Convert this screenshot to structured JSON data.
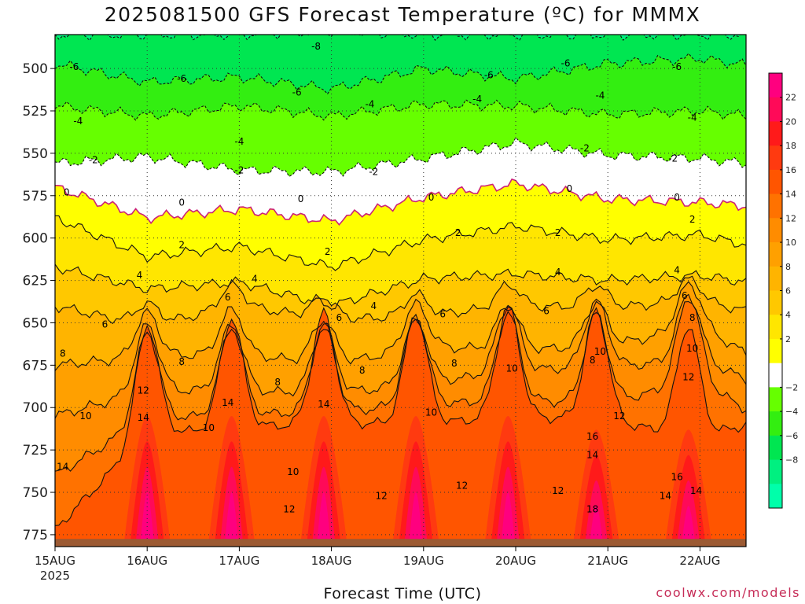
{
  "title": "2025081500 GFS Forecast Temperature (ºC) for MMMX",
  "xlabel": "Forecast Time (UTC)",
  "credit": "coolwx.com/models",
  "colors": {
    "ground": "#9c5a33",
    "freezing_line": "#cc2277",
    "contour": "#111111",
    "dashed_contour": "#111111"
  },
  "chart_data": {
    "type": "heatmap",
    "title": "2025081500 GFS Forecast Temperature (ºC) for MMMX",
    "xlabel": "Forecast Time (UTC)",
    "ylabel": "",
    "x_axis": {
      "start_hour": 0,
      "end_hour": 180,
      "ticks": [
        {
          "hour": 0,
          "label": "15AUG",
          "sublabel": "2025"
        },
        {
          "hour": 24,
          "label": "16AUG"
        },
        {
          "hour": 48,
          "label": "17AUG"
        },
        {
          "hour": 72,
          "label": "18AUG"
        },
        {
          "hour": 96,
          "label": "19AUG"
        },
        {
          "hour": 120,
          "label": "20AUG"
        },
        {
          "hour": 144,
          "label": "21AUG"
        },
        {
          "hour": 168,
          "label": "22AUG"
        }
      ]
    },
    "y_axis": {
      "top_hpa": 480,
      "bottom_hpa": 782,
      "ticks": [
        500,
        525,
        550,
        575,
        600,
        625,
        650,
        675,
        700,
        725,
        750,
        775
      ]
    },
    "grid": true,
    "legend_position": "right",
    "colorbar": {
      "label_values": [
        22,
        20,
        18,
        16,
        14,
        12,
        10,
        8,
        6,
        4,
        2,
        -2,
        -4,
        -6,
        -8
      ],
      "levels_top_down": [
        {
          "max": 24,
          "color": "#ff007f"
        },
        {
          "max": 22,
          "color": "#ff0a58"
        },
        {
          "max": 20,
          "color": "#ff1a1a"
        },
        {
          "max": 18,
          "color": "#ff3a10"
        },
        {
          "max": 16,
          "color": "#ff5500"
        },
        {
          "max": 14,
          "color": "#ff7200"
        },
        {
          "max": 12,
          "color": "#ff8c00"
        },
        {
          "max": 10,
          "color": "#ffa000"
        },
        {
          "max": 8,
          "color": "#ffb400"
        },
        {
          "max": 6,
          "color": "#ffc800"
        },
        {
          "max": 4,
          "color": "#ffe600"
        },
        {
          "max": 2,
          "color": "#ffff00"
        },
        {
          "max": 0,
          "color": "#ffffff"
        },
        {
          "max": -2,
          "color": "#66ff00"
        },
        {
          "max": -4,
          "color": "#33ee11"
        },
        {
          "max": -6,
          "color": "#00e651"
        },
        {
          "max": -8,
          "color": "#00f080"
        },
        {
          "max": -10,
          "color": "#00ffaa"
        }
      ]
    },
    "series": [
      {
        "name": "-8",
        "hours": [
          0,
          24,
          48,
          72,
          96,
          120,
          144,
          168,
          180
        ],
        "pressure": [
          480,
          480,
          480,
          478,
          480,
          480,
          480,
          480,
          480
        ]
      },
      {
        "name": "-6",
        "hours": [
          0,
          24,
          48,
          72,
          96,
          120,
          144,
          168,
          180
        ],
        "pressure": [
          497,
          508,
          505,
          512,
          500,
          506,
          497,
          494,
          498
        ]
      },
      {
        "name": "-4",
        "hours": [
          0,
          24,
          48,
          72,
          96,
          120,
          144,
          168,
          180
        ],
        "pressure": [
          522,
          528,
          522,
          528,
          521,
          522,
          527,
          525,
          528
        ]
      },
      {
        "name": "-2",
        "hours": [
          0,
          24,
          48,
          72,
          96,
          120,
          144,
          168,
          180
        ],
        "pressure": [
          556,
          552,
          560,
          561,
          553,
          544,
          551,
          553,
          556
        ]
      },
      {
        "name": "0",
        "hours": [
          0,
          24,
          48,
          72,
          96,
          120,
          144,
          168,
          180
        ],
        "pressure": [
          570,
          588,
          583,
          590,
          576,
          568,
          577,
          579,
          581
        ]
      },
      {
        "name": "2",
        "hours": [
          0,
          24,
          48,
          72,
          96,
          120,
          144,
          168,
          180
        ],
        "pressure": [
          588,
          611,
          605,
          617,
          601,
          593,
          601,
          598,
          604
        ]
      },
      {
        "name": "4",
        "hours": [
          0,
          24,
          48,
          72,
          96,
          120,
          144,
          168,
          180
        ],
        "pressure": [
          617,
          630,
          626,
          640,
          624,
          621,
          625,
          622,
          626
        ]
      },
      {
        "name": "6",
        "hours": [
          0,
          24,
          48,
          72,
          96,
          120,
          144,
          168,
          180
        ],
        "pressure": [
          640,
          652,
          640,
          648,
          646,
          640,
          641,
          637,
          643
        ]
      },
      {
        "name": "8",
        "hours": [
          0,
          24,
          48,
          72,
          96,
          120,
          144,
          168,
          180
        ],
        "pressure": [
          675,
          670,
          668,
          675,
          664,
          666,
          664,
          652,
          668
        ]
      },
      {
        "name": "10",
        "hours": [
          0,
          24,
          48,
          72,
          96,
          120,
          144,
          168,
          180
        ],
        "pressure": [
          705,
          690,
          690,
          692,
          686,
          678,
          676,
          672,
          683
        ]
      },
      {
        "name": "12",
        "hours": [
          0,
          24,
          48,
          72,
          96,
          120,
          144,
          168,
          180
        ],
        "pressure": [
          740,
          707,
          704,
          703,
          698,
          696,
          697,
          685,
          701
        ]
      },
      {
        "name": "14",
        "hours": [
          0,
          24,
          48,
          72,
          96,
          120,
          144,
          168,
          180
        ],
        "pressure": [
          772,
          716,
          712,
          709,
          710,
          705,
          708,
          718,
          710
        ]
      }
    ],
    "contour_labels": [
      {
        "text": "-8",
        "hour": 68,
        "p": 487
      },
      {
        "text": "-6",
        "hour": 5,
        "p": 499
      },
      {
        "text": "-6",
        "hour": 33,
        "p": 506
      },
      {
        "text": "-6",
        "hour": 63,
        "p": 514
      },
      {
        "text": "-6",
        "hour": 113,
        "p": 504
      },
      {
        "text": "-6",
        "hour": 133,
        "p": 497
      },
      {
        "text": "-6",
        "hour": 162,
        "p": 499
      },
      {
        "text": "-4",
        "hour": 6,
        "p": 531
      },
      {
        "text": "-4",
        "hour": 48,
        "p": 543
      },
      {
        "text": "-4",
        "hour": 82,
        "p": 521
      },
      {
        "text": "-4",
        "hour": 110,
        "p": 518
      },
      {
        "text": "-4",
        "hour": 142,
        "p": 516
      },
      {
        "text": "-4",
        "hour": 166,
        "p": 529
      },
      {
        "text": "-2",
        "hour": 10,
        "p": 554
      },
      {
        "text": "-2",
        "hour": 48,
        "p": 560
      },
      {
        "text": "-2",
        "hour": 83,
        "p": 561
      },
      {
        "text": "-2",
        "hour": 138,
        "p": 547
      },
      {
        "text": "-2",
        "hour": 161,
        "p": 553
      },
      {
        "text": "0",
        "hour": 3,
        "p": 573
      },
      {
        "text": "0",
        "hour": 33,
        "p": 579
      },
      {
        "text": "0",
        "hour": 64,
        "p": 577
      },
      {
        "text": "0",
        "hour": 98,
        "p": 576
      },
      {
        "text": "0",
        "hour": 134,
        "p": 571
      },
      {
        "text": "0",
        "hour": 162,
        "p": 576
      },
      {
        "text": "2",
        "hour": 33,
        "p": 604
      },
      {
        "text": "2",
        "hour": 71,
        "p": 608
      },
      {
        "text": "2",
        "hour": 105,
        "p": 597
      },
      {
        "text": "2",
        "hour": 131,
        "p": 597
      },
      {
        "text": "2",
        "hour": 166,
        "p": 589
      },
      {
        "text": "4",
        "hour": 22,
        "p": 622
      },
      {
        "text": "4",
        "hour": 52,
        "p": 624
      },
      {
        "text": "4",
        "hour": 83,
        "p": 640
      },
      {
        "text": "4",
        "hour": 131,
        "p": 620
      },
      {
        "text": "4",
        "hour": 162,
        "p": 619
      },
      {
        "text": "6",
        "hour": 13,
        "p": 651
      },
      {
        "text": "6",
        "hour": 45,
        "p": 635
      },
      {
        "text": "6",
        "hour": 74,
        "p": 647
      },
      {
        "text": "6",
        "hour": 101,
        "p": 645
      },
      {
        "text": "6",
        "hour": 128,
        "p": 643
      },
      {
        "text": "6",
        "hour": 164,
        "p": 634
      },
      {
        "text": "8",
        "hour": 2,
        "p": 668
      },
      {
        "text": "8",
        "hour": 33,
        "p": 673
      },
      {
        "text": "8",
        "hour": 58,
        "p": 685
      },
      {
        "text": "8",
        "hour": 80,
        "p": 678
      },
      {
        "text": "8",
        "hour": 104,
        "p": 674
      },
      {
        "text": "8",
        "hour": 140,
        "p": 672
      },
      {
        "text": "8",
        "hour": 166,
        "p": 647
      },
      {
        "text": "10",
        "hour": 8,
        "p": 705
      },
      {
        "text": "10",
        "hour": 40,
        "p": 712
      },
      {
        "text": "10",
        "hour": 62,
        "p": 738
      },
      {
        "text": "10",
        "hour": 98,
        "p": 703
      },
      {
        "text": "10",
        "hour": 119,
        "p": 677
      },
      {
        "text": "10",
        "hour": 142,
        "p": 667
      },
      {
        "text": "10",
        "hour": 166,
        "p": 665
      },
      {
        "text": "12",
        "hour": 23,
        "p": 690
      },
      {
        "text": "12",
        "hour": 61,
        "p": 760
      },
      {
        "text": "12",
        "hour": 85,
        "p": 752
      },
      {
        "text": "12",
        "hour": 106,
        "p": 746
      },
      {
        "text": "12",
        "hour": 131,
        "p": 749
      },
      {
        "text": "12",
        "hour": 147,
        "p": 705
      },
      {
        "text": "12",
        "hour": 165,
        "p": 682
      },
      {
        "text": "14",
        "hour": 2,
        "p": 735
      },
      {
        "text": "14",
        "hour": 23,
        "p": 706
      },
      {
        "text": "14",
        "hour": 45,
        "p": 697
      },
      {
        "text": "14",
        "hour": 70,
        "p": 698
      },
      {
        "text": "14",
        "hour": 140,
        "p": 728
      },
      {
        "text": "14",
        "hour": 159,
        "p": 752
      },
      {
        "text": "14",
        "hour": 167,
        "p": 749
      },
      {
        "text": "16",
        "hour": 140,
        "p": 717
      },
      {
        "text": "16",
        "hour": 162,
        "p": 741
      },
      {
        "text": "18",
        "hour": 140,
        "p": 760
      }
    ]
  }
}
